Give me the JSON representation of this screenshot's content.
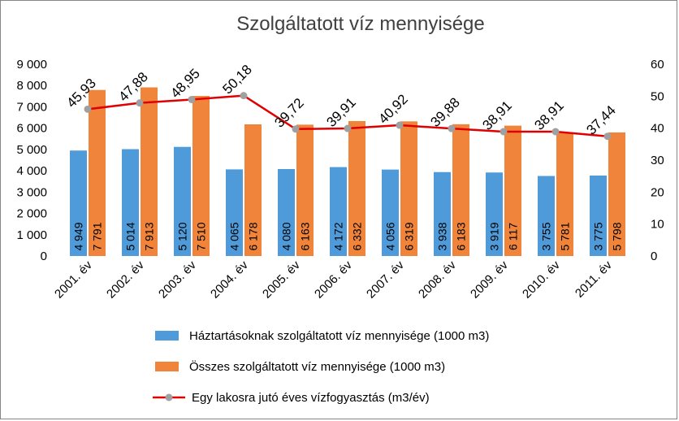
{
  "chart_data": {
    "type": "bar",
    "title": "Szolgáltatott víz mennyisége",
    "categories": [
      "2001. év",
      "2002. év",
      "2003. év",
      "2004. év",
      "2005. év",
      "2006. év",
      "2007. év",
      "2008. év",
      "2009. év",
      "2010. év",
      "2011. év"
    ],
    "series": [
      {
        "name": "Háztartásoknak szolgáltatott víz mennyisége (1000 m3)",
        "type": "bar",
        "axis": "left",
        "color": "#4f9ad8",
        "values": [
          4949,
          5014,
          5120,
          4065,
          4080,
          4172,
          4056,
          3938,
          3919,
          3755,
          3775
        ],
        "labels": [
          "4 949",
          "5 014",
          "5 120",
          "4 065",
          "4 080",
          "4 172",
          "4 056",
          "3 938",
          "3 919",
          "3 755",
          "3 775"
        ]
      },
      {
        "name": "Összes szolgáltatott víz mennyisége (1000 m3)",
        "type": "bar",
        "axis": "left",
        "color": "#f0843a",
        "values": [
          7791,
          7913,
          7510,
          6178,
          6163,
          6332,
          6319,
          6183,
          6117,
          5781,
          5798
        ],
        "labels": [
          "7 791",
          "7 913",
          "7 510",
          "6 178",
          "6 163",
          "6 332",
          "6 319",
          "6 183",
          "6 117",
          "5 781",
          "5 798"
        ]
      },
      {
        "name": "Egy lakosra jutó éves vízfogyasztás (m3/év)",
        "type": "line",
        "axis": "right",
        "color": "#e00000",
        "marker_color": "#a0a0a0",
        "values": [
          45.93,
          47.88,
          48.95,
          50.18,
          39.72,
          39.91,
          40.92,
          39.88,
          38.91,
          38.91,
          37.44
        ],
        "labels": [
          "45,93",
          "47,88",
          "48,95",
          "50,18",
          "39,72",
          "39,91",
          "40,92",
          "39,88",
          "38,91",
          "38,91",
          "37,44"
        ]
      }
    ],
    "y_left": {
      "ylim": [
        0,
        9000
      ],
      "ticks": [
        0,
        1000,
        2000,
        3000,
        4000,
        5000,
        6000,
        7000,
        8000,
        9000
      ],
      "tick_labels": [
        "0",
        "1 000",
        "2 000",
        "3 000",
        "4 000",
        "5 000",
        "6 000",
        "7 000",
        "8 000",
        "9 000"
      ]
    },
    "y_right": {
      "ylim": [
        0,
        60
      ],
      "ticks": [
        0,
        10,
        20,
        30,
        40,
        50,
        60
      ],
      "tick_labels": [
        "0",
        "10",
        "20",
        "30",
        "40",
        "50",
        "60"
      ]
    },
    "grid": false,
    "legend_position": "bottom"
  }
}
